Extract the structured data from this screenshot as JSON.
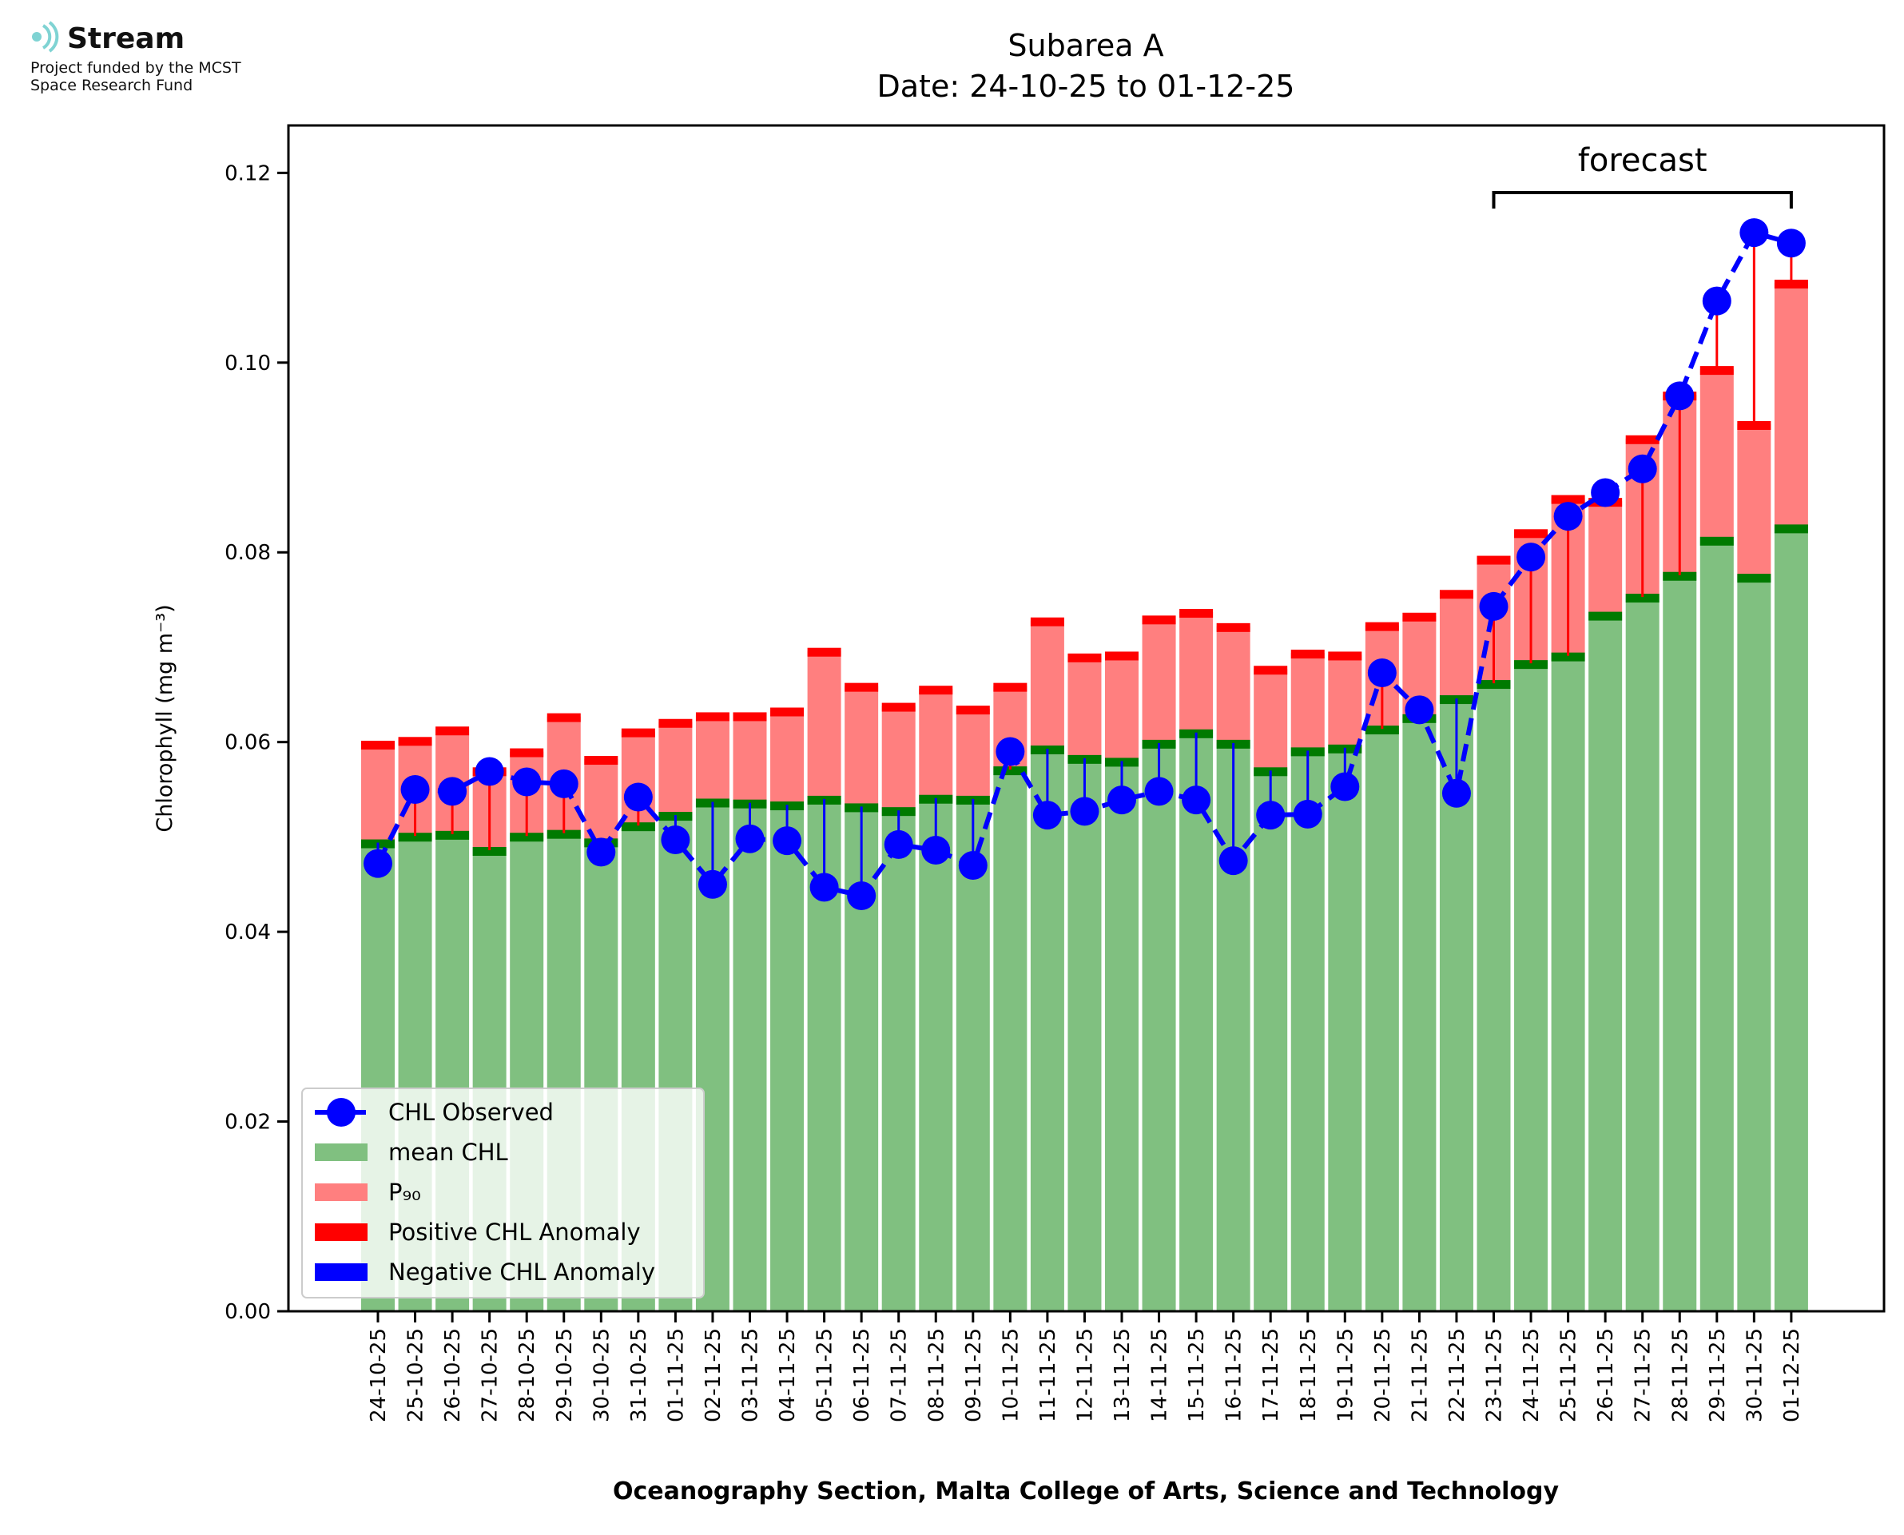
{
  "logo": {
    "name": "Stream",
    "line1": "Project funded by the MCST",
    "line2": "Space Research Fund"
  },
  "annotation": {
    "forecast_label": "forecast"
  },
  "colors": {
    "mean": "#80c080",
    "mean_line": "#007a00",
    "p90": "#ff7f7f",
    "p90_line": "#ff0000",
    "observed": "#0000ff",
    "pos_anomaly": "#ff0000",
    "neg_anomaly": "#0000ff"
  },
  "chart_data": {
    "type": "bar",
    "title": "Subarea A",
    "subtitle": "Date: 24-10-25 to 01-12-25",
    "xlabel": "Oceanography Section, Malta College of Arts, Science and Technology",
    "ylabel": "Chlorophyll (mg m⁻³)",
    "ylim": [
      0,
      0.125
    ],
    "yticks": [
      "0.00",
      "0.02",
      "0.04",
      "0.06",
      "0.08",
      "0.10",
      "0.12"
    ],
    "forecast_start": "23-11-25",
    "forecast_end": "01-12-25",
    "categories": [
      "24-10-25",
      "25-10-25",
      "26-10-25",
      "27-10-25",
      "28-10-25",
      "29-10-25",
      "30-10-25",
      "31-10-25",
      "01-11-25",
      "02-11-25",
      "03-11-25",
      "04-11-25",
      "05-11-25",
      "06-11-25",
      "07-11-25",
      "08-11-25",
      "09-11-25",
      "10-11-25",
      "11-11-25",
      "12-11-25",
      "13-11-25",
      "14-11-25",
      "15-11-25",
      "16-11-25",
      "17-11-25",
      "18-11-25",
      "19-11-25",
      "20-11-25",
      "21-11-25",
      "22-11-25",
      "23-11-25",
      "24-11-25",
      "25-11-25",
      "26-11-25",
      "27-11-25",
      "28-11-25",
      "29-11-25",
      "30-11-25",
      "01-12-25"
    ],
    "series": [
      {
        "name": "mean CHL",
        "values": [
          0.0494,
          0.0501,
          0.0503,
          0.0486,
          0.0501,
          0.0504,
          0.0495,
          0.0512,
          0.0523,
          0.0537,
          0.0536,
          0.0534,
          0.054,
          0.0532,
          0.0528,
          0.0541,
          0.054,
          0.0571,
          0.0593,
          0.0583,
          0.058,
          0.0599,
          0.061,
          0.0599,
          0.057,
          0.0591,
          0.0594,
          0.0614,
          0.0626,
          0.0646,
          0.0662,
          0.0683,
          0.0691,
          0.0734,
          0.0753,
          0.0776,
          0.0813,
          0.0774,
          0.0826
        ]
      },
      {
        "name": "P90",
        "values": [
          0.0598,
          0.0602,
          0.0613,
          0.057,
          0.059,
          0.0627,
          0.0582,
          0.0611,
          0.0621,
          0.0628,
          0.0628,
          0.0633,
          0.0696,
          0.0659,
          0.0638,
          0.0656,
          0.0635,
          0.0659,
          0.0728,
          0.069,
          0.0692,
          0.073,
          0.0737,
          0.0722,
          0.0677,
          0.0694,
          0.0692,
          0.0723,
          0.0733,
          0.0757,
          0.0793,
          0.0821,
          0.0857,
          0.0854,
          0.092,
          0.0966,
          0.0993,
          0.0935,
          0.1084
        ]
      },
      {
        "name": "CHL Observed",
        "values": [
          0.0472,
          0.055,
          0.0548,
          0.0569,
          0.0558,
          0.0556,
          0.0484,
          0.0542,
          0.0497,
          0.045,
          0.0498,
          0.0496,
          0.0447,
          0.0438,
          0.0492,
          0.0486,
          0.047,
          0.059,
          0.0523,
          0.0527,
          0.0539,
          0.0548,
          0.0539,
          0.0475,
          0.0523,
          0.0524,
          0.0553,
          0.0673,
          0.0634,
          0.0546,
          0.0743,
          0.0795,
          0.0838,
          0.0863,
          0.0888,
          0.0965,
          0.1065,
          0.1137,
          0.1126
        ]
      }
    ],
    "legend": {
      "position": "lower-left",
      "entries": [
        "CHL Observed",
        "mean CHL",
        "P₉₀",
        "Positive CHL Anomaly",
        "Negative CHL Anomaly"
      ]
    }
  }
}
